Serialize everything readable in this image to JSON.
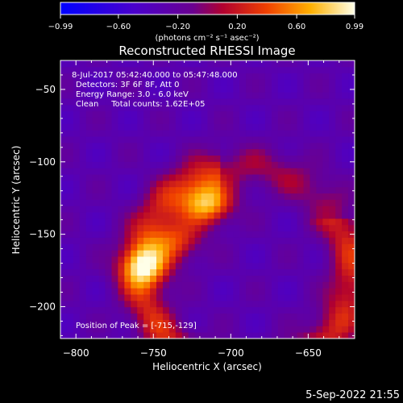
{
  "chart_data": {
    "type": "heatmap",
    "title": "Reconstructed RHESSI Image",
    "info_lines": [
      "8-Jul-2017 05:42:40.000 to 05:47:48.000",
      "Detectors: 3F 6F 8F, Att 0",
      "Energy Range: 3.0 - 6.0 keV",
      "Clean     Total counts: 1.62E+05"
    ],
    "peak_label": "Position of Peak = [-715,-129]",
    "peak": [
      -715,
      -129
    ],
    "xlabel": "Heliocentric X (arcsec)",
    "ylabel": "Heliocentric Y (arcsec)",
    "xlim": [
      -810,
      -620
    ],
    "ylim": [
      -222,
      -30
    ],
    "xticks": [
      -800,
      -750,
      -700,
      -650
    ],
    "xtick_labels": [
      "−800",
      "−750",
      "−700",
      "−650"
    ],
    "yticks": [
      -50,
      -100,
      -150,
      -200
    ],
    "ytick_labels": [
      "−50",
      "−100",
      "−150",
      "−200"
    ],
    "colorbar": {
      "min": -0.99,
      "max": 0.99,
      "ticks": [
        -0.99,
        -0.6,
        -0.2,
        0.2,
        0.6,
        0.99
      ],
      "tick_labels": [
        "−0.99",
        "−0.60",
        "−0.20",
        "0.20",
        "0.60",
        "0.99"
      ],
      "units": "(photons cm⁻² s⁻¹ asec⁻²)"
    },
    "sources": [
      {
        "x": -715,
        "y": -129,
        "amp": 0.99
      },
      {
        "x": -756,
        "y": -172,
        "amp": 0.85
      },
      {
        "x": -735,
        "y": -155,
        "amp": 0.6
      }
    ],
    "grid": false
  },
  "footer": {
    "timestamp": "5-Sep-2022 21:55"
  }
}
